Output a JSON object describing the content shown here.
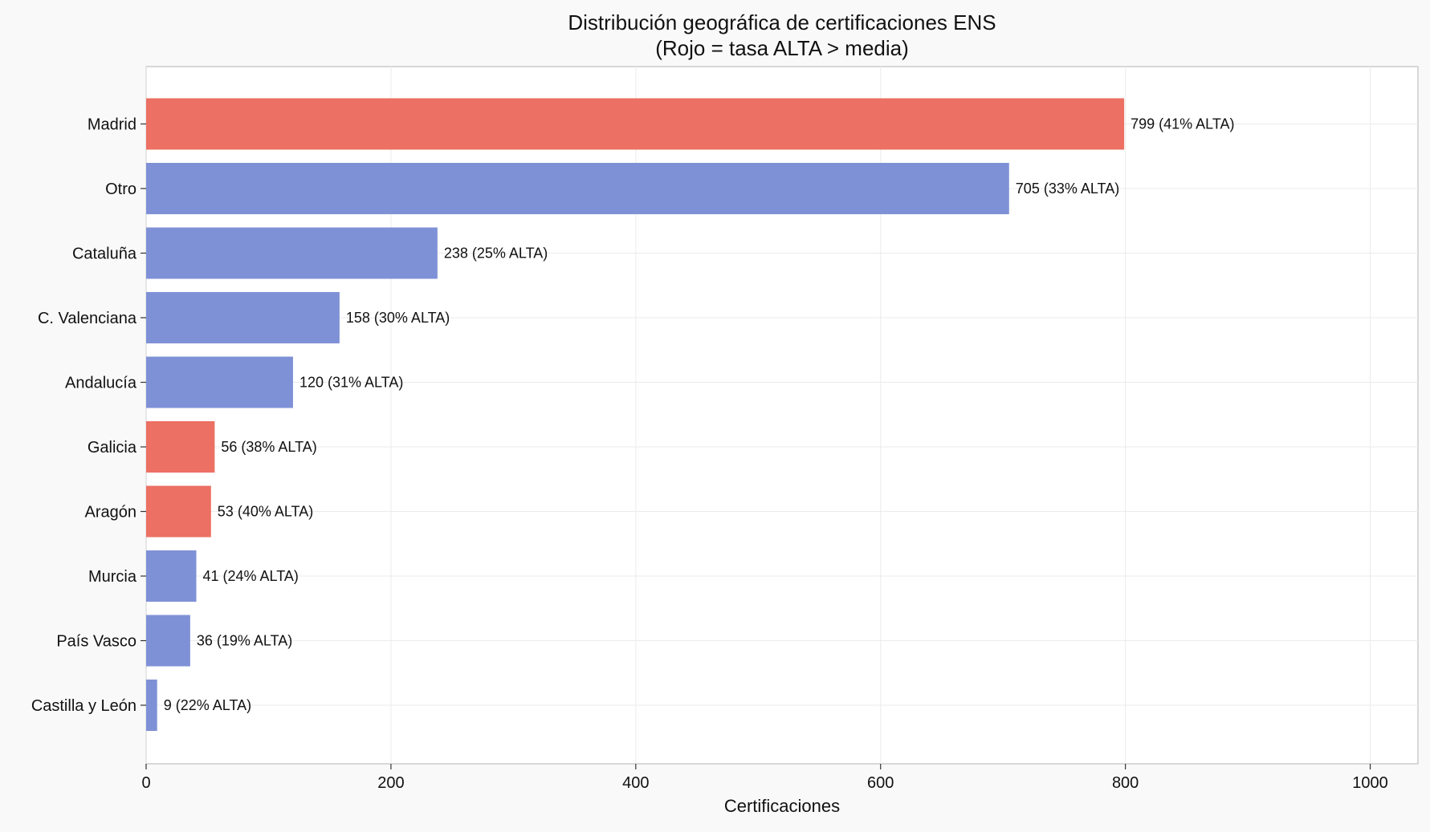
{
  "chart_data": {
    "type": "bar",
    "orientation": "horizontal",
    "title": "Distribución geográfica de certificaciones ENS",
    "subtitle": "(Rojo = tasa ALTA > media)",
    "xlabel": "Certificaciones",
    "ylabel": "",
    "xlim": [
      0,
      1039
    ],
    "xticks": [
      0,
      200,
      400,
      600,
      800,
      1000
    ],
    "grid": true,
    "categories": [
      "Madrid",
      "Otro",
      "Cataluña",
      "C. Valenciana",
      "Andalucía",
      "Galicia",
      "Aragón",
      "Murcia",
      "País Vasco",
      "Castilla y León"
    ],
    "values": [
      799,
      705,
      238,
      158,
      120,
      56,
      53,
      41,
      36,
      9
    ],
    "alta_pct": [
      41,
      33,
      25,
      30,
      31,
      38,
      40,
      24,
      19,
      22
    ],
    "labels": [
      "799 (41% ALTA)",
      "705 (33% ALTA)",
      "238 (25% ALTA)",
      "158 (30% ALTA)",
      "120 (31% ALTA)",
      "56 (38% ALTA)",
      "53 (40% ALTA)",
      "41 (24% ALTA)",
      "36 (19% ALTA)",
      "9 (22% ALTA)"
    ],
    "high": [
      true,
      false,
      false,
      false,
      false,
      true,
      true,
      false,
      false,
      false
    ],
    "colors": {
      "high": "#ec7063",
      "normal": "#7f91d6"
    }
  }
}
